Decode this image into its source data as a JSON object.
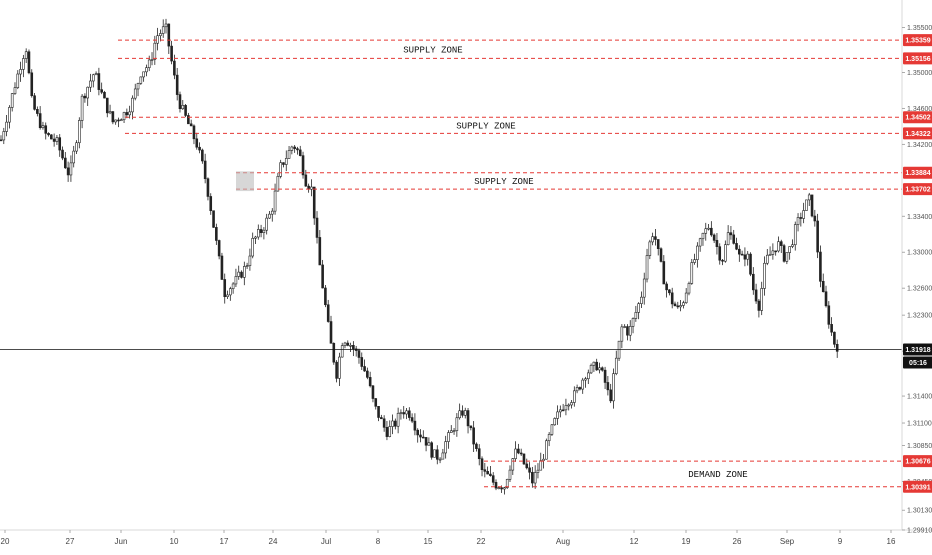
{
  "chart_data": {
    "type": "candlestick",
    "title": "",
    "xlabel": "",
    "ylabel": "",
    "ylim": [
      1.2991,
      1.3575
    ],
    "grid": false,
    "y_ticks": [
      "1.35500",
      "1.35000",
      "1.34600",
      "1.34200",
      "1.33400",
      "1.33000",
      "1.32600",
      "1.32300",
      "1.31900",
      "1.31400",
      "1.31100",
      "1.30850",
      "1.30450",
      "1.30130",
      "1.29910"
    ],
    "x_ticks": [
      "20",
      "27",
      "Jun",
      "10",
      "17",
      "24",
      "Jul",
      "8",
      "15",
      "22",
      "Aug",
      "12",
      "19",
      "26",
      "Sep",
      "9",
      "16"
    ],
    "zones": [
      {
        "label": "SUPPLY ZONE",
        "top": 1.35359,
        "bottom": 1.35156,
        "top_label": "1.35359",
        "bottom_label": "1.35156"
      },
      {
        "label": "SUPPLY ZONE",
        "top": 1.34502,
        "bottom": 1.34322,
        "top_label": "1.34502",
        "bottom_label": "1.34322"
      },
      {
        "label": "SUPPLY ZONE",
        "top": 1.33884,
        "bottom": 1.33702,
        "top_label": "1.33884",
        "bottom_label": "1.33702"
      },
      {
        "label": "DEMAND ZONE",
        "top": 1.30676,
        "bottom": 1.30391,
        "top_label": "1.30676",
        "bottom_label": "1.30391"
      }
    ],
    "current_price": {
      "value": 1.31918,
      "label": "1.31918",
      "countdown": "05:16"
    },
    "price_path": [
      [
        0,
        1.3425
      ],
      [
        4,
        1.348
      ],
      [
        8,
        1.353
      ],
      [
        10,
        1.3465
      ],
      [
        14,
        1.3432
      ],
      [
        18,
        1.3422
      ],
      [
        22,
        1.3385
      ],
      [
        24,
        1.342
      ],
      [
        26,
        1.347
      ],
      [
        30,
        1.35
      ],
      [
        33,
        1.347
      ],
      [
        36,
        1.3445
      ],
      [
        40,
        1.3455
      ],
      [
        42,
        1.3465
      ],
      [
        45,
        1.35
      ],
      [
        48,
        1.351
      ],
      [
        50,
        1.354
      ],
      [
        53,
        1.355
      ],
      [
        55,
        1.351
      ],
      [
        57,
        1.347
      ],
      [
        60,
        1.3445
      ],
      [
        63,
        1.342
      ],
      [
        65,
        1.3395
      ],
      [
        67,
        1.336
      ],
      [
        70,
        1.3295
      ],
      [
        72,
        1.3255
      ],
      [
        74,
        1.3262
      ],
      [
        76,
        1.327
      ],
      [
        79,
        1.3285
      ],
      [
        81,
        1.3312
      ],
      [
        84,
        1.3325
      ],
      [
        87,
        1.3345
      ],
      [
        90,
        1.3395
      ],
      [
        94,
        1.342
      ],
      [
        96,
        1.341
      ],
      [
        98,
        1.338
      ],
      [
        100,
        1.337
      ],
      [
        102,
        1.33
      ],
      [
        104,
        1.325
      ],
      [
        106,
        1.32
      ],
      [
        108,
        1.3165
      ],
      [
        110,
        1.3205
      ],
      [
        112,
        1.32
      ],
      [
        115,
        1.3185
      ],
      [
        118,
        1.316
      ],
      [
        120,
        1.313
      ],
      [
        122,
        1.3115
      ],
      [
        124,
        1.31
      ],
      [
        127,
        1.311
      ],
      [
        129,
        1.3125
      ],
      [
        132,
        1.312
      ],
      [
        134,
        1.31
      ],
      [
        136,
        1.3095
      ],
      [
        139,
        1.3075
      ],
      [
        141,
        1.3072
      ],
      [
        143,
        1.3088
      ],
      [
        145,
        1.31
      ],
      [
        147,
        1.3115
      ],
      [
        149,
        1.3125
      ],
      [
        152,
        1.309
      ],
      [
        155,
        1.3055
      ],
      [
        157,
        1.305
      ],
      [
        159,
        1.3042
      ],
      [
        162,
        1.304
      ],
      [
        164,
        1.3065
      ],
      [
        166,
        1.308
      ],
      [
        169,
        1.306
      ],
      [
        171,
        1.3045
      ],
      [
        174,
        1.3068
      ],
      [
        176,
        1.309
      ],
      [
        178,
        1.311
      ],
      [
        180,
        1.3125
      ],
      [
        182,
        1.3135
      ],
      [
        184,
        1.3138
      ],
      [
        186,
        1.315
      ],
      [
        188,
        1.3165
      ],
      [
        190,
        1.317
      ],
      [
        192,
        1.3175
      ],
      [
        194,
        1.316
      ],
      [
        196,
        1.3135
      ],
      [
        198,
        1.318
      ],
      [
        200,
        1.322
      ],
      [
        202,
        1.321
      ],
      [
        204,
        1.323
      ],
      [
        206,
        1.325
      ],
      [
        208,
        1.33
      ],
      [
        210,
        1.3325
      ],
      [
        212,
        1.329
      ],
      [
        214,
        1.326
      ],
      [
        216,
        1.3245
      ],
      [
        218,
        1.3235
      ],
      [
        220,
        1.325
      ],
      [
        222,
        1.328
      ],
      [
        224,
        1.33
      ],
      [
        226,
        1.332
      ],
      [
        228,
        1.333
      ],
      [
        230,
        1.331
      ],
      [
        232,
        1.329
      ],
      [
        234,
        1.332
      ],
      [
        236,
        1.3315
      ],
      [
        238,
        1.329
      ],
      [
        240,
        1.33
      ],
      [
        242,
        1.326
      ],
      [
        244,
        1.324
      ],
      [
        246,
        1.329
      ],
      [
        248,
        1.33
      ],
      [
        250,
        1.331
      ],
      [
        252,
        1.3295
      ],
      [
        254,
        1.3305
      ],
      [
        256,
        1.333
      ],
      [
        258,
        1.3345
      ],
      [
        260,
        1.336
      ],
      [
        262,
        1.333
      ],
      [
        264,
        1.326
      ],
      [
        266,
        1.323
      ],
      [
        268,
        1.32
      ],
      [
        270,
        1.3192
      ]
    ],
    "x_total": 270
  }
}
